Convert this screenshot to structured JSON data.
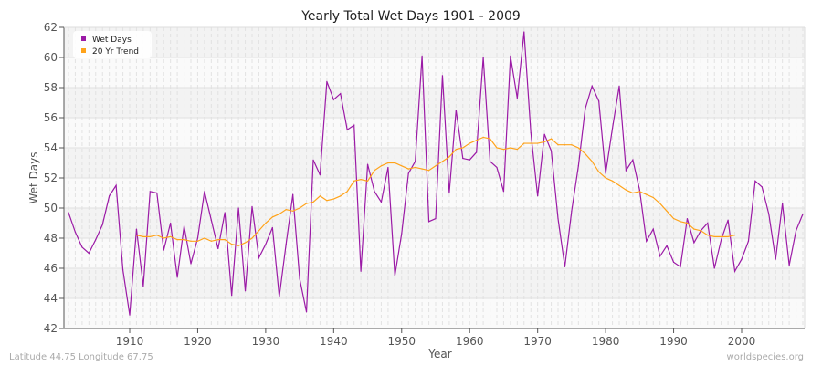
{
  "chart_data": {
    "type": "line",
    "title": "Yearly Total Wet Days 1901 - 2009",
    "xlabel": "Year",
    "ylabel": "Wet Days",
    "xlim": [
      1901,
      2009
    ],
    "ylim": [
      42,
      62
    ],
    "x_ticks": [
      1910,
      1920,
      1930,
      1940,
      1950,
      1960,
      1970,
      1980,
      1990,
      2000
    ],
    "y_ticks": [
      42,
      44,
      46,
      48,
      50,
      52,
      54,
      56,
      58,
      60,
      62
    ],
    "grid": true,
    "legend_position": "top-left",
    "series": [
      {
        "name": "Wet Days",
        "color": "#9b1aa6",
        "x_start": 1901,
        "values": [
          49.7,
          48.4,
          47.4,
          47.0,
          47.9,
          48.9,
          50.8,
          51.5,
          45.9,
          42.9,
          48.6,
          44.8,
          51.1,
          51.0,
          47.2,
          49.0,
          45.4,
          48.8,
          46.3,
          48.0,
          51.1,
          49.2,
          47.3,
          49.7,
          44.2,
          50.0,
          44.5,
          50.1,
          46.7,
          47.6,
          48.7,
          44.1,
          47.6,
          50.9,
          45.3,
          43.1,
          53.2,
          52.2,
          58.4,
          57.2,
          57.6,
          55.2,
          55.5,
          45.8,
          52.9,
          51.1,
          50.4,
          52.7,
          45.5,
          48.3,
          52.3,
          53.1,
          60.1,
          49.1,
          49.3,
          58.8,
          51.0,
          56.5,
          53.3,
          53.2,
          53.7,
          60.0,
          53.1,
          52.7,
          51.1,
          60.1,
          57.3,
          61.7,
          55.0,
          50.8,
          54.9,
          53.8,
          49.3,
          46.1,
          49.8,
          52.8,
          56.6,
          58.1,
          57.1,
          52.3,
          55.3,
          58.1,
          52.5,
          53.2,
          51.2,
          47.8,
          48.6,
          46.8,
          47.5,
          46.4,
          46.1,
          49.3,
          47.7,
          48.5,
          49.0,
          46.0,
          47.9,
          49.2,
          45.8,
          46.6,
          47.8,
          51.8,
          51.4,
          49.6,
          46.6,
          50.3,
          46.2,
          48.5,
          49.6
        ]
      },
      {
        "name": "20 Yr Trend",
        "color": "#ffa31a",
        "x_start": 1911,
        "values": [
          48.2,
          48.1,
          48.1,
          48.2,
          48.0,
          48.1,
          47.9,
          47.9,
          47.8,
          47.8,
          48.0,
          47.8,
          47.9,
          47.9,
          47.6,
          47.5,
          47.7,
          48.0,
          48.5,
          49.0,
          49.4,
          49.6,
          49.9,
          49.8,
          50.0,
          50.3,
          50.4,
          50.8,
          50.5,
          50.6,
          50.8,
          51.1,
          51.8,
          51.9,
          51.8,
          52.5,
          52.8,
          53.0,
          53.0,
          52.8,
          52.6,
          52.7,
          52.6,
          52.5,
          52.8,
          53.1,
          53.4,
          53.9,
          54.0,
          54.3,
          54.5,
          54.7,
          54.6,
          54.0,
          53.9,
          54.0,
          53.9,
          54.3,
          54.3,
          54.3,
          54.4,
          54.6,
          54.2,
          54.2,
          54.2,
          54.0,
          53.6,
          53.1,
          52.4,
          52.0,
          51.8,
          51.5,
          51.2,
          51.0,
          51.1,
          50.9,
          50.7,
          50.3,
          49.8,
          49.3,
          49.1,
          49.0,
          48.6,
          48.5,
          48.2,
          48.1,
          48.1,
          48.1,
          48.2
        ]
      }
    ]
  },
  "footer": {
    "location": "Latitude 44.75 Longitude 67.75",
    "source": "worldspecies.org"
  }
}
